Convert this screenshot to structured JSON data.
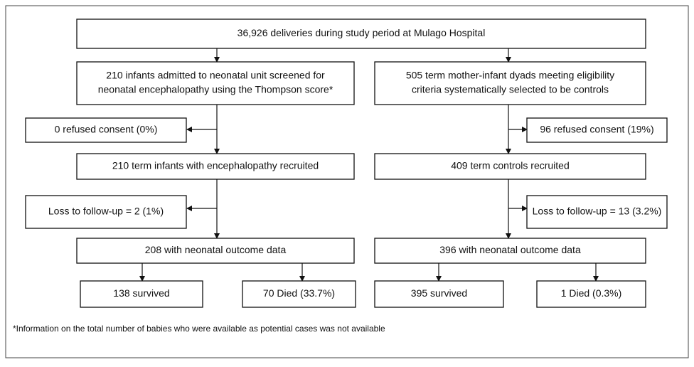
{
  "nodes": [
    {
      "lines": [
        "36,926 deliveries during study period at Mulago Hospital"
      ]
    },
    {
      "lines": [
        "210 infants admitted to neonatal unit screened for",
        "neonatal encephalopathy using the Thompson score*"
      ]
    },
    {
      "lines": [
        "505 term mother-infant dyads meeting eligibility",
        "criteria systematically selected to be controls"
      ]
    },
    {
      "lines": [
        "0 refused consent (0%)"
      ]
    },
    {
      "lines": [
        "96 refused consent (19%)"
      ]
    },
    {
      "lines": [
        "210 term infants with encephalopathy recruited"
      ]
    },
    {
      "lines": [
        "409 term controls recruited"
      ]
    },
    {
      "lines": [
        "Loss to follow-up = 2 (1%)"
      ]
    },
    {
      "lines": [
        "Loss to follow-up = 13 (3.2%)"
      ]
    },
    {
      "lines": [
        "208 with neonatal outcome data"
      ]
    },
    {
      "lines": [
        "396 with neonatal outcome data"
      ]
    },
    {
      "lines": [
        "138 survived"
      ]
    },
    {
      "lines": [
        "70 Died (33.7%)"
      ]
    },
    {
      "lines": [
        "395 survived"
      ]
    },
    {
      "lines": [
        "1 Died (0.3%)"
      ]
    }
  ],
  "footnote": "*Information on the total number of babies who were available as potential cases was not available"
}
